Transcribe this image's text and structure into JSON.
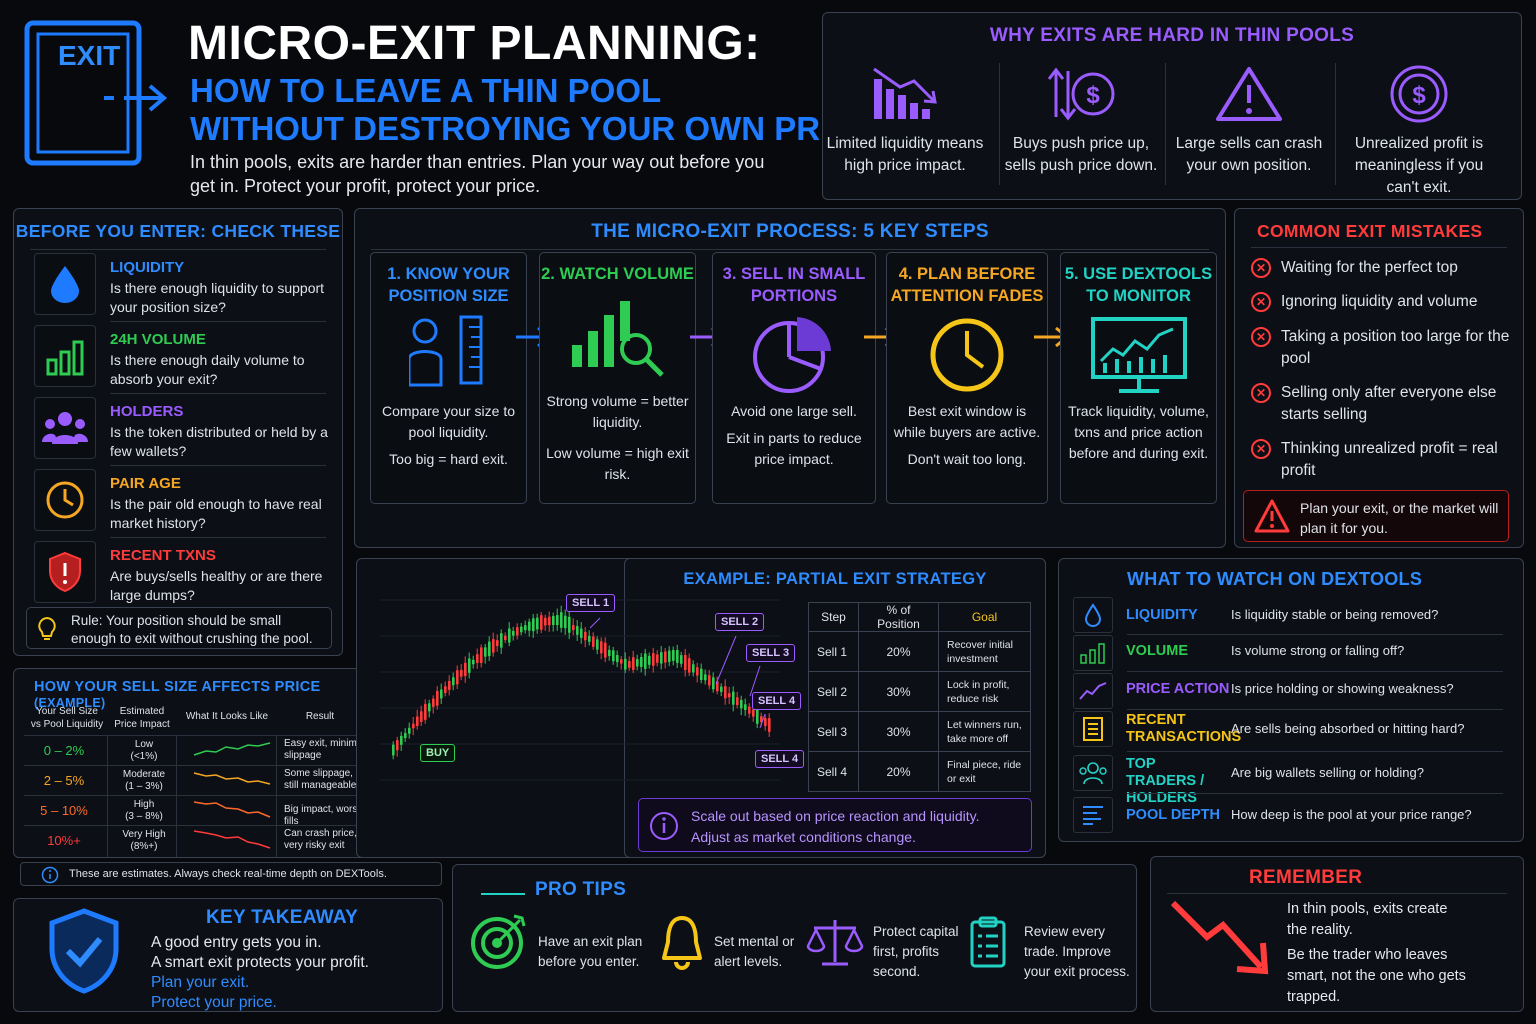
{
  "header": {
    "exit_label": "EXIT",
    "title": "MICRO-EXIT PLANNING:",
    "subtitle_line1": "HOW TO LEAVE A THIN POOL",
    "subtitle_line2": "WITHOUT DESTROYING YOUR OWN PRICE",
    "intro": "In thin pools, exits are harder than entries. Plan your way out before you get in. Protect your profit, protect your price."
  },
  "why": {
    "title": "WHY EXITS ARE HARD IN THIN POOLS",
    "items": [
      {
        "text": "Limited liquidity means high price impact.",
        "icon": "bar-chart-down-icon"
      },
      {
        "text": "Buys push price up, sells push price down.",
        "icon": "dollar-updown-icon"
      },
      {
        "text": "Large sells can crash your own position.",
        "icon": "warning-triangle-icon"
      },
      {
        "text": "Unrealized profit is meaningless if you can't exit.",
        "icon": "dollar-coin-icon"
      }
    ]
  },
  "before": {
    "title": "BEFORE YOU ENTER: CHECK THESE",
    "items": [
      {
        "label": "LIQUIDITY",
        "desc": "Is there enough liquidity to support your position size?",
        "color": "#2f8cff"
      },
      {
        "label": "24H VOLUME",
        "desc": "Is there enough daily volume to absorb your exit?",
        "color": "#2ecc52"
      },
      {
        "label": "HOLDERS",
        "desc": "Is the token distributed or held by a few wallets?",
        "color": "#9b5cff"
      },
      {
        "label": "PAIR AGE",
        "desc": "Is the pair old enough to have real market history?",
        "color": "#f5a623"
      },
      {
        "label": "RECENT TXNS",
        "desc": "Are buys/sells healthy or are there large dumps?",
        "color": "#ff3b3b"
      }
    ],
    "rule": "Rule: Your position should be small enough to exit without crushing the pool."
  },
  "process": {
    "title": "THE MICRO-EXIT PROCESS: 5 KEY STEPS",
    "steps": [
      {
        "title": "1. KNOW YOUR POSITION SIZE",
        "desc1": "Compare your size to pool liquidity.",
        "desc2": "Too big = hard exit."
      },
      {
        "title": "2. WATCH VOLUME",
        "desc1": "Strong volume = better liquidity.",
        "desc2": "Low volume = high exit risk."
      },
      {
        "title": "3. SELL IN SMALL PORTIONS",
        "desc1": "Avoid one large sell.",
        "desc2": "Exit in parts to reduce price impact."
      },
      {
        "title": "4. PLAN BEFORE ATTENTION FADES",
        "desc1": "Best exit window is while buyers are active.",
        "desc2": "Don't wait too long."
      },
      {
        "title": "5. USE DEXTOOLS TO MONITOR",
        "desc1": "Track liquidity, volume, txns and price action before and during exit.",
        "desc2": ""
      }
    ]
  },
  "mistakes": {
    "title": "COMMON EXIT MISTAKES",
    "items": [
      "Waiting for the perfect top",
      "Ignoring liquidity and volume",
      "Taking a position too large for the pool",
      "Selling only after everyone else starts selling",
      "Thinking unrealized profit = real profit"
    ],
    "warning": "Plan your exit, or the market will plan it for you."
  },
  "sell_size": {
    "title": "HOW YOUR SELL SIZE AFFECTS PRICE",
    "title_suffix": "(EXAMPLE)",
    "headers": [
      "Your Sell Size vs Pool Liquidity",
      "Estimated Price Impact",
      "What It Looks Like",
      "Result"
    ],
    "rows": [
      {
        "size": "0 – 2%",
        "impact": "Low",
        "range": "(<1%)",
        "result": "Easy exit, minimal slippage",
        "color": "#2ecc52"
      },
      {
        "size": "2 – 5%",
        "impact": "Moderate",
        "range": "(1 – 3%)",
        "result": "Some slippage, still manageable",
        "color": "#f5a623"
      },
      {
        "size": "5 – 10%",
        "impact": "High",
        "range": "(3 – 8%)",
        "result": "Big impact, worse fills",
        "color": "#ff6a2b"
      },
      {
        "size": "10%+",
        "impact": "Very High",
        "range": "(8%+)",
        "result": "Can crash price, very risky exit",
        "color": "#ff3b3b"
      }
    ],
    "note": "These are estimates. Always check real-time depth on DEXTools."
  },
  "example": {
    "title": "EXAMPLE: PARTIAL EXIT STRATEGY",
    "chart_tags": [
      "BUY",
      "SELL 1",
      "SELL 2",
      "SELL 3",
      "SELL 4"
    ],
    "headers": [
      "Step",
      "% of Position",
      "Goal"
    ],
    "rows": [
      {
        "step": "Sell 1",
        "pct": "20%",
        "goal": "Recover initial investment"
      },
      {
        "step": "Sell 2",
        "pct": "30%",
        "goal": "Lock in profit, reduce risk"
      },
      {
        "step": "Sell 3",
        "pct": "30%",
        "goal": "Let winners run, take more off"
      },
      {
        "step": "Sell 4",
        "pct": "20%",
        "goal": "Final piece, ride or exit"
      }
    ],
    "note": "Scale out based on price reaction and liquidity. Adjust as market conditions change."
  },
  "watch": {
    "title": "WHAT TO WATCH ON DEXTOOLS",
    "items": [
      {
        "label": "LIQUIDITY",
        "question": "Is liquidity stable or being removed?",
        "color": "#2f8cff"
      },
      {
        "label": "VOLUME",
        "question": "Is volume strong or falling off?",
        "color": "#2ecc52"
      },
      {
        "label": "PRICE ACTION",
        "question": "Is price holding or showing weakness?",
        "color": "#9b5cff"
      },
      {
        "label": "RECENT TRANSACTIONS",
        "question": "Are sells being absorbed or hitting hard?",
        "color": "#f5c518"
      },
      {
        "label": "TOP TRADERS / HOLDERS",
        "question": "Are big wallets selling or holding?",
        "color": "#22d3c5"
      },
      {
        "label": "POOL DEPTH",
        "question": "How deep is the pool at your price range?",
        "color": "#2f8cff"
      }
    ]
  },
  "takeaway": {
    "title": "KEY TAKEAWAY",
    "line1": "A good entry gets you in.",
    "line2": "A smart exit protects your profit.",
    "line3": "Plan your exit.",
    "line4": "Protect your price."
  },
  "tips": {
    "title": "PRO TIPS",
    "items": [
      "Have an exit plan before you enter.",
      "Set mental or alert levels.",
      "Protect capital first, profits second.",
      "Review every trade. Improve your exit process."
    ]
  },
  "remember": {
    "title": "REMEMBER",
    "line1": "In thin pools, exits create the reality.",
    "line2": "Be the trader who leaves smart, not the one who gets trapped."
  }
}
